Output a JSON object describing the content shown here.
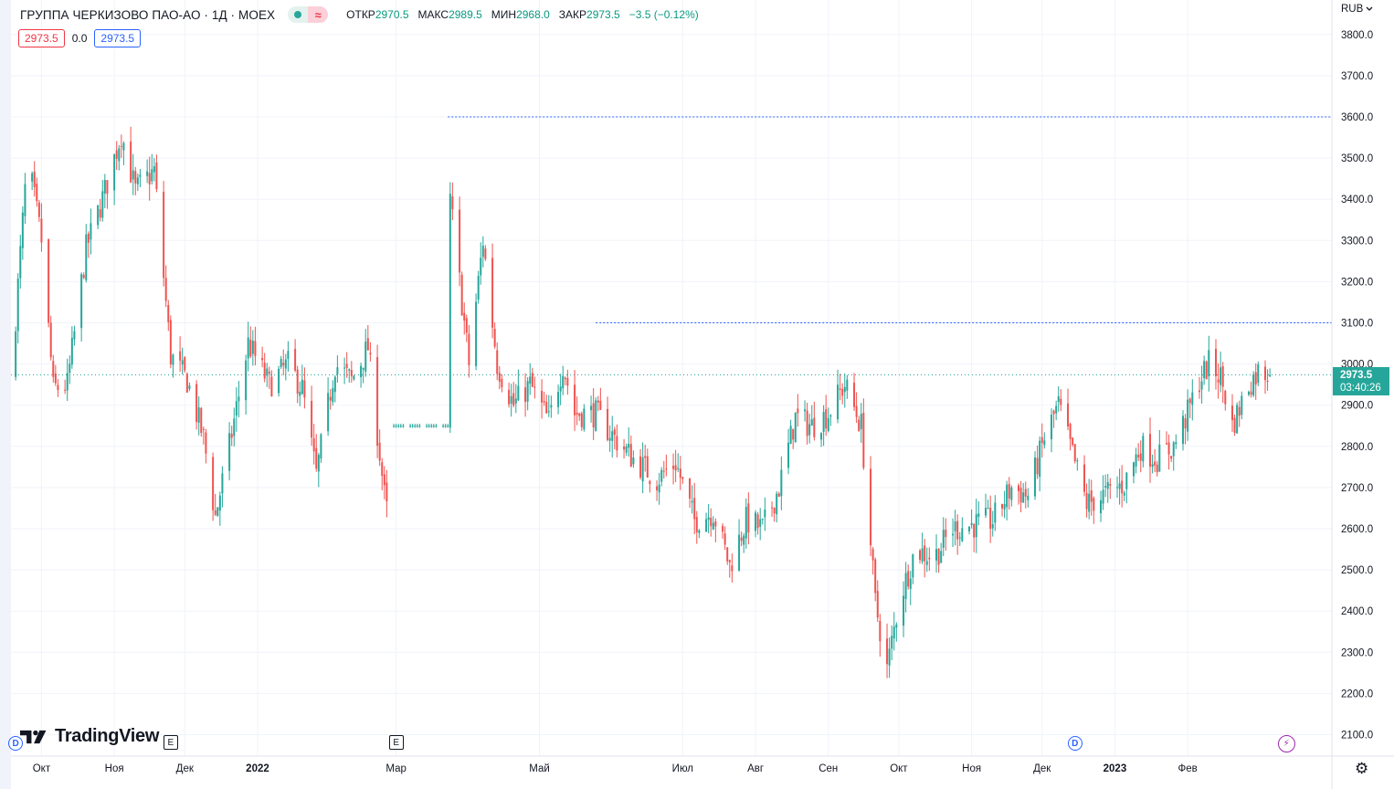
{
  "header": {
    "title": "ГРУППА ЧЕРКИЗОВО ПАО-АО · 1Д · MOEX",
    "open_label": "ОТКР",
    "open_value": "2970.5",
    "high_label": "МАКС",
    "high_value": "2989.5",
    "low_label": "МИН",
    "low_value": "2968.0",
    "close_label": "ЗАКР",
    "close_value": "2973.5",
    "change": "−3.5 (−0.12%)"
  },
  "indicator_row": {
    "bid": "2973.5",
    "spread": "0.0",
    "ask": "2973.5"
  },
  "currency": "RUB",
  "currency_icon": "chevron-down-icon",
  "current_price": {
    "price": "2973.5",
    "countdown": "03:40:26"
  },
  "brand": "TradingView",
  "markers": [
    {
      "kind": "dividend",
      "glyph": "D",
      "date": "2021-09-20"
    },
    {
      "kind": "earnings",
      "glyph": "E",
      "date": "2021-11-25"
    },
    {
      "kind": "earnings",
      "glyph": "E",
      "date": "2022-03-01"
    },
    {
      "kind": "dividend",
      "glyph": "D",
      "date": "2022-12-15"
    },
    {
      "kind": "event",
      "glyph": "⚡",
      "date": "2023-03-15"
    }
  ],
  "colors": {
    "up": "#26a69a",
    "down": "#ef5350",
    "hline": "#2962ff",
    "grid": "#f0f3fa"
  },
  "chart_data": {
    "type": "candlestick",
    "title": "ГРУППА ЧЕРКИЗОВО ПАО-АО · 1Д · MOEX",
    "ylim": [
      2050,
      3850
    ],
    "y_ticks": [
      2100,
      2200,
      2300,
      2400,
      2500,
      2600,
      2700,
      2800,
      2900,
      3000,
      3100,
      3200,
      3300,
      3400,
      3500,
      3600,
      3700,
      3800
    ],
    "y_scale": "linear",
    "grid": true,
    "x_range": [
      "2021-09-18",
      "2023-04-03"
    ],
    "x_ticks": [
      {
        "label": "Окт",
        "date": "2021-10-01"
      },
      {
        "label": "Ноя",
        "date": "2021-11-01"
      },
      {
        "label": "Дек",
        "date": "2021-12-01"
      },
      {
        "label": "2022",
        "date": "2022-01-01",
        "bold": true
      },
      {
        "label": "Мар",
        "date": "2022-03-01"
      },
      {
        "label": "Май",
        "date": "2022-05-01"
      },
      {
        "label": "Июл",
        "date": "2022-07-01"
      },
      {
        "label": "Авг",
        "date": "2022-08-01"
      },
      {
        "label": "Сен",
        "date": "2022-09-01"
      },
      {
        "label": "Окт",
        "date": "2022-10-01"
      },
      {
        "label": "Ноя",
        "date": "2022-11-01"
      },
      {
        "label": "Дек",
        "date": "2022-12-01"
      },
      {
        "label": "2023",
        "date": "2023-01-01",
        "bold": true
      },
      {
        "label": "Фев",
        "date": "2023-02-01"
      }
    ],
    "horizontal_lines": [
      {
        "price": 3600,
        "from": "2022-03-23",
        "style": "dotted"
      },
      {
        "price": 3100,
        "from": "2022-05-25",
        "style": "dotted"
      }
    ],
    "last_price": 2973.5,
    "close_path": [
      [
        "2021-09-18",
        2960
      ],
      [
        "2021-09-25",
        3500
      ],
      [
        "2021-10-01",
        3300
      ],
      [
        "2021-10-06",
        2940
      ],
      [
        "2021-10-12",
        2950
      ],
      [
        "2021-10-20",
        3280
      ],
      [
        "2021-10-28",
        3420
      ],
      [
        "2021-11-04",
        3560
      ],
      [
        "2021-11-10",
        3420
      ],
      [
        "2021-11-18",
        3470
      ],
      [
        "2021-11-25",
        3020
      ],
      [
        "2021-12-02",
        2960
      ],
      [
        "2021-12-09",
        2820
      ],
      [
        "2021-12-14",
        2630
      ],
      [
        "2021-12-20",
        2800
      ],
      [
        "2021-12-28",
        3050
      ],
      [
        "2022-01-06",
        2950
      ],
      [
        "2022-01-14",
        3000
      ],
      [
        "2022-01-20",
        2940
      ],
      [
        "2022-01-26",
        2730
      ],
      [
        "2022-02-03",
        3000
      ],
      [
        "2022-02-10",
        2960
      ],
      [
        "2022-02-17",
        3040
      ],
      [
        "2022-02-24",
        2680
      ],
      [
        "2022-03-01",
        2500
      ],
      [
        "2022-03-04",
        2850
      ],
      [
        "2022-03-18",
        2850
      ],
      [
        "2022-03-24",
        3400
      ],
      [
        "2022-04-01",
        3000
      ],
      [
        "2022-04-07",
        3300
      ],
      [
        "2022-04-13",
        3000
      ],
      [
        "2022-04-20",
        2900
      ],
      [
        "2022-04-27",
        2950
      ],
      [
        "2022-05-05",
        2860
      ],
      [
        "2022-05-11",
        3000
      ],
      [
        "2022-05-16",
        2880
      ],
      [
        "2022-05-25",
        2880
      ],
      [
        "2022-06-02",
        2820
      ],
      [
        "2022-06-10",
        2770
      ],
      [
        "2022-06-20",
        2720
      ],
      [
        "2022-06-28",
        2760
      ],
      [
        "2022-07-06",
        2620
      ],
      [
        "2022-07-14",
        2640
      ],
      [
        "2022-07-21",
        2510
      ],
      [
        "2022-07-28",
        2620
      ],
      [
        "2022-08-04",
        2600
      ],
      [
        "2022-08-11",
        2700
      ],
      [
        "2022-08-18",
        2870
      ],
      [
        "2022-08-25",
        2850
      ],
      [
        "2022-09-01",
        2880
      ],
      [
        "2022-09-08",
        2950
      ],
      [
        "2022-09-15",
        2850
      ],
      [
        "2022-09-21",
        2420
      ],
      [
        "2022-09-26",
        2260
      ],
      [
        "2022-10-01",
        2420
      ],
      [
        "2022-10-08",
        2550
      ],
      [
        "2022-10-16",
        2530
      ],
      [
        "2022-10-24",
        2600
      ],
      [
        "2022-11-02",
        2610
      ],
      [
        "2022-11-10",
        2620
      ],
      [
        "2022-11-18",
        2700
      ],
      [
        "2022-11-25",
        2680
      ],
      [
        "2022-12-02",
        2820
      ],
      [
        "2022-12-08",
        2900
      ],
      [
        "2022-12-15",
        2760
      ],
      [
        "2022-12-20",
        2660
      ],
      [
        "2022-12-27",
        2680
      ],
      [
        "2023-01-05",
        2710
      ],
      [
        "2023-01-12",
        2800
      ],
      [
        "2023-01-19",
        2770
      ],
      [
        "2023-01-26",
        2800
      ],
      [
        "2023-02-01",
        2880
      ],
      [
        "2023-02-06",
        2960
      ],
      [
        "2023-02-10",
        3000
      ],
      [
        "2023-02-15",
        2970
      ],
      [
        "2023-02-20",
        2850
      ],
      [
        "2023-02-27",
        2950
      ],
      [
        "2023-03-04",
        2990
      ],
      [
        "2023-03-08",
        2973.5
      ]
    ]
  }
}
